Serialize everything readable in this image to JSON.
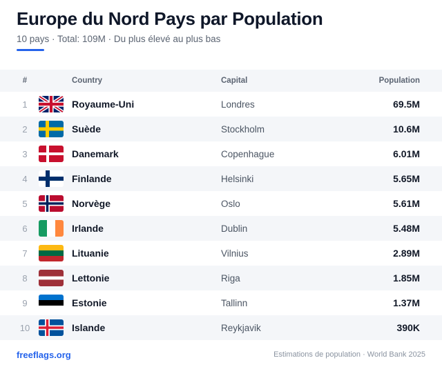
{
  "header": {
    "title": "Europe du Nord Pays par Population",
    "subtitle": "10 pays · Total: 109M · Du plus élevé au plus bas",
    "accent_color": "#2563eb"
  },
  "table": {
    "columns": {
      "rank": "#",
      "country": "Country",
      "capital": "Capital",
      "population": "Population"
    },
    "rows": [
      {
        "rank": "1",
        "flag": "uk-flag-icon",
        "country": "Royaume-Uni",
        "capital": "Londres",
        "population": "69.5M"
      },
      {
        "rank": "2",
        "flag": "sweden-flag-icon",
        "country": "Suède",
        "capital": "Stockholm",
        "population": "10.6M"
      },
      {
        "rank": "3",
        "flag": "denmark-flag-icon",
        "country": "Danemark",
        "capital": "Copenhague",
        "population": "6.01M"
      },
      {
        "rank": "4",
        "flag": "finland-flag-icon",
        "country": "Finlande",
        "capital": "Helsinki",
        "population": "5.65M"
      },
      {
        "rank": "5",
        "flag": "norway-flag-icon",
        "country": "Norvège",
        "capital": "Oslo",
        "population": "5.61M"
      },
      {
        "rank": "6",
        "flag": "ireland-flag-icon",
        "country": "Irlande",
        "capital": "Dublin",
        "population": "5.48M"
      },
      {
        "rank": "7",
        "flag": "lithuania-flag-icon",
        "country": "Lituanie",
        "capital": "Vilnius",
        "population": "2.89M"
      },
      {
        "rank": "8",
        "flag": "latvia-flag-icon",
        "country": "Lettonie",
        "capital": "Riga",
        "population": "1.85M"
      },
      {
        "rank": "9",
        "flag": "estonia-flag-icon",
        "country": "Estonie",
        "capital": "Tallinn",
        "population": "1.37M"
      },
      {
        "rank": "10",
        "flag": "iceland-flag-icon",
        "country": "Islande",
        "capital": "Reykjavik",
        "population": "390K"
      }
    ]
  },
  "footer": {
    "brand": "freeflags.org",
    "source": "Estimations de population · World Bank 2025"
  }
}
